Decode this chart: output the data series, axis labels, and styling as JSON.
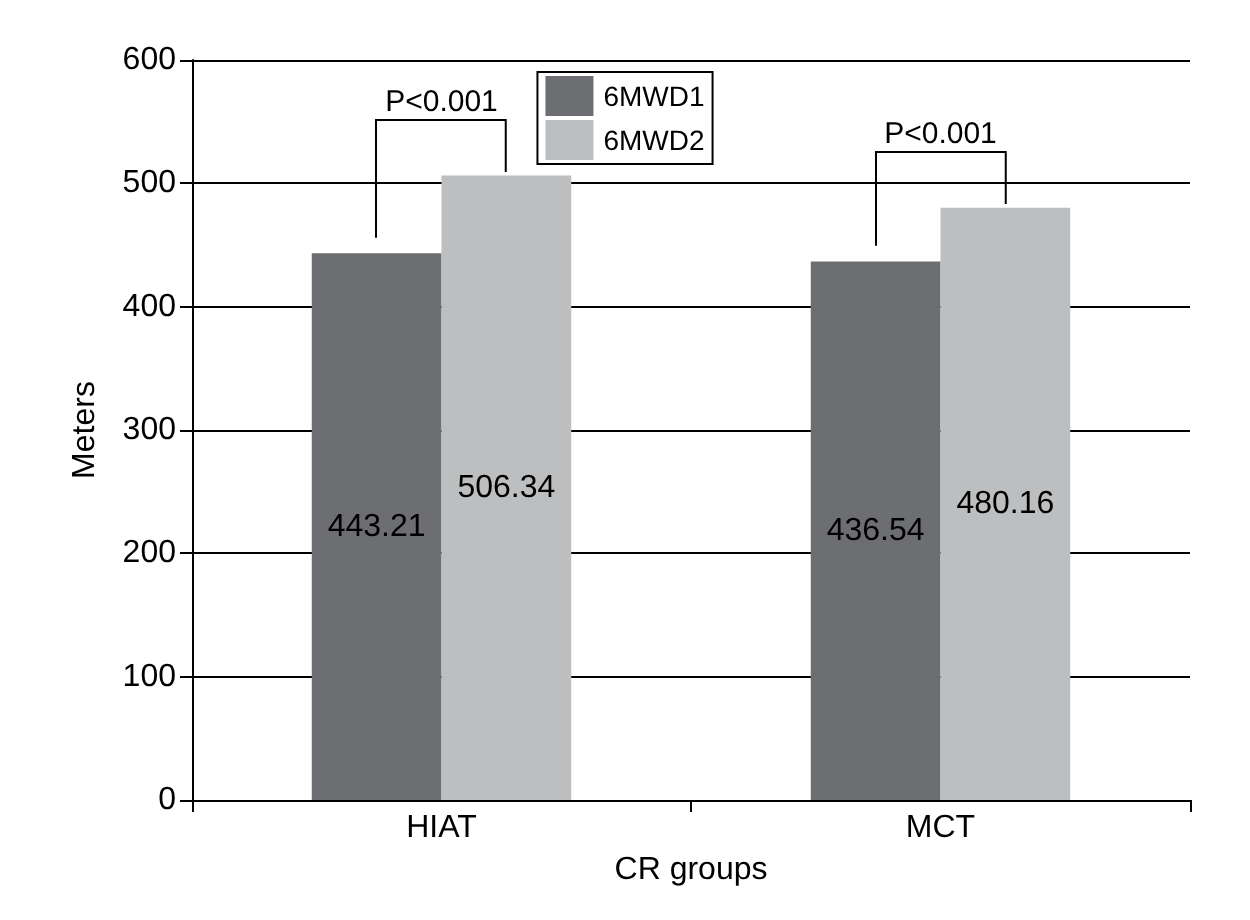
{
  "chart_data": {
    "type": "bar",
    "xlabel": "CR groups",
    "ylabel": "Meters",
    "categories": [
      "HIAT",
      "MCT"
    ],
    "series": [
      {
        "name": "6MWD1",
        "color": "#6d6e71",
        "values": [
          443.21,
          436.54
        ]
      },
      {
        "name": "6MWD2",
        "color": "#bcbec0",
        "values": [
          506.34,
          480.16
        ]
      }
    ],
    "ylim": [
      0,
      600
    ],
    "yticks": [
      0,
      100,
      200,
      300,
      400,
      500,
      600
    ],
    "grid": "y",
    "legend": "top",
    "data_labels": true,
    "annotations": [
      "P<0.001",
      "P<0.001"
    ]
  }
}
